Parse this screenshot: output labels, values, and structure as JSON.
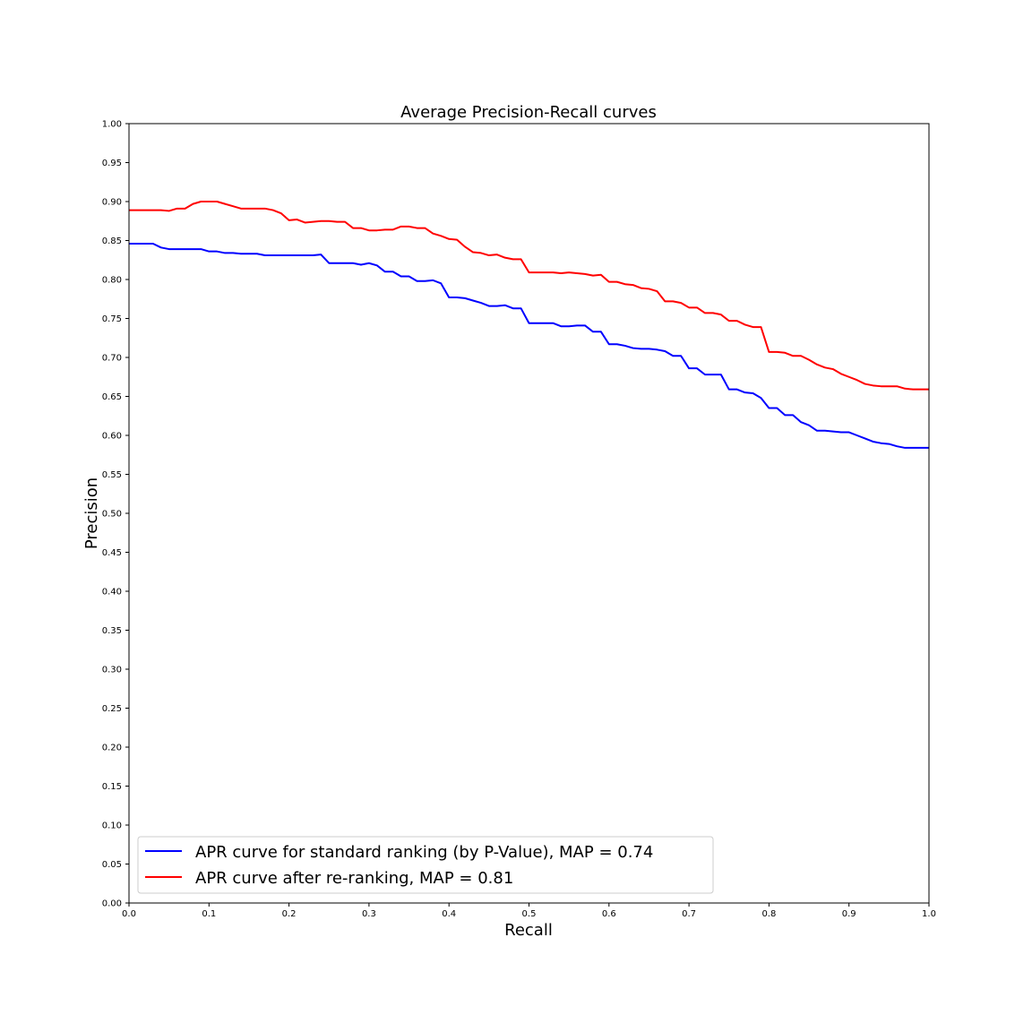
{
  "chart_data": {
    "type": "line",
    "title": "Average Precision-Recall curves",
    "xlabel": "Recall",
    "ylabel": "Precision",
    "xlim": [
      0,
      1
    ],
    "ylim": [
      0,
      1
    ],
    "grid": false,
    "legend_placement": "lower-left",
    "x_ticks": [
      "0.0",
      "0.1",
      "0.2",
      "0.3",
      "0.4",
      "0.5",
      "0.6",
      "0.7",
      "0.8",
      "0.9",
      "1.0"
    ],
    "y_ticks": [
      "0.00",
      "0.05",
      "0.10",
      "0.15",
      "0.20",
      "0.25",
      "0.30",
      "0.35",
      "0.40",
      "0.45",
      "0.50",
      "0.55",
      "0.60",
      "0.65",
      "0.70",
      "0.75",
      "0.80",
      "0.85",
      "0.90",
      "0.95",
      "1.00"
    ],
    "x": [
      0,
      0.01,
      0.02,
      0.03,
      0.04,
      0.05,
      0.06,
      0.07,
      0.08,
      0.09,
      0.1,
      0.11,
      0.12,
      0.13,
      0.14,
      0.15,
      0.16,
      0.17,
      0.18,
      0.19,
      0.2,
      0.21,
      0.22,
      0.23,
      0.24,
      0.25,
      0.26,
      0.27,
      0.28,
      0.29,
      0.3,
      0.31,
      0.32,
      0.33,
      0.34,
      0.35,
      0.36,
      0.37,
      0.38,
      0.39,
      0.4,
      0.41,
      0.42,
      0.43,
      0.44,
      0.45,
      0.46,
      0.47,
      0.48,
      0.49,
      0.5,
      0.51,
      0.52,
      0.53,
      0.54,
      0.55,
      0.56,
      0.57,
      0.58,
      0.59,
      0.6,
      0.61,
      0.62,
      0.63,
      0.64,
      0.65,
      0.66,
      0.67,
      0.68,
      0.69,
      0.7,
      0.71,
      0.72,
      0.73,
      0.74,
      0.75,
      0.76,
      0.77,
      0.78,
      0.79,
      0.8,
      0.81,
      0.82,
      0.83,
      0.84,
      0.85,
      0.86,
      0.87,
      0.88,
      0.89,
      0.9,
      0.91,
      0.92,
      0.93,
      0.94,
      0.95,
      0.96,
      0.97,
      0.98,
      0.99,
      1.0
    ],
    "series": [
      {
        "name": "APR curve for standard ranking (by P-Value), MAP = 0.74",
        "color": "#0000ff",
        "values": [
          0.846,
          0.846,
          0.846,
          0.846,
          0.841,
          0.839,
          0.839,
          0.839,
          0.839,
          0.839,
          0.836,
          0.836,
          0.834,
          0.834,
          0.833,
          0.833,
          0.833,
          0.831,
          0.831,
          0.831,
          0.831,
          0.831,
          0.831,
          0.831,
          0.832,
          0.821,
          0.821,
          0.821,
          0.821,
          0.819,
          0.821,
          0.818,
          0.81,
          0.81,
          0.804,
          0.804,
          0.798,
          0.798,
          0.799,
          0.795,
          0.777,
          0.777,
          0.776,
          0.773,
          0.77,
          0.766,
          0.766,
          0.767,
          0.763,
          0.763,
          0.744,
          0.744,
          0.744,
          0.744,
          0.74,
          0.74,
          0.741,
          0.741,
          0.733,
          0.733,
          0.717,
          0.717,
          0.715,
          0.712,
          0.711,
          0.711,
          0.71,
          0.708,
          0.702,
          0.702,
          0.686,
          0.686,
          0.678,
          0.678,
          0.678,
          0.659,
          0.659,
          0.655,
          0.654,
          0.648,
          0.635,
          0.635,
          0.626,
          0.626,
          0.617,
          0.613,
          0.606,
          0.606,
          0.605,
          0.604,
          0.604,
          0.6,
          0.596,
          0.592,
          0.59,
          0.589,
          0.586,
          0.584,
          0.584,
          0.584,
          0.584
        ]
      },
      {
        "name": "APR curve after re-ranking, MAP = 0.81",
        "color": "#ff0000",
        "values": [
          0.889,
          0.889,
          0.889,
          0.889,
          0.889,
          0.888,
          0.891,
          0.891,
          0.897,
          0.9,
          0.9,
          0.9,
          0.897,
          0.894,
          0.891,
          0.891,
          0.891,
          0.891,
          0.889,
          0.885,
          0.876,
          0.877,
          0.873,
          0.874,
          0.875,
          0.875,
          0.874,
          0.874,
          0.866,
          0.866,
          0.863,
          0.863,
          0.864,
          0.864,
          0.868,
          0.868,
          0.866,
          0.866,
          0.859,
          0.856,
          0.852,
          0.851,
          0.842,
          0.835,
          0.834,
          0.831,
          0.832,
          0.828,
          0.826,
          0.826,
          0.809,
          0.809,
          0.809,
          0.809,
          0.808,
          0.809,
          0.808,
          0.807,
          0.805,
          0.806,
          0.797,
          0.797,
          0.794,
          0.793,
          0.789,
          0.788,
          0.785,
          0.772,
          0.772,
          0.77,
          0.764,
          0.764,
          0.757,
          0.757,
          0.755,
          0.747,
          0.747,
          0.742,
          0.739,
          0.739,
          0.707,
          0.707,
          0.706,
          0.702,
          0.702,
          0.697,
          0.691,
          0.687,
          0.685,
          0.679,
          0.675,
          0.671,
          0.666,
          0.664,
          0.663,
          0.663,
          0.663,
          0.66,
          0.659,
          0.659,
          0.659
        ]
      }
    ]
  }
}
